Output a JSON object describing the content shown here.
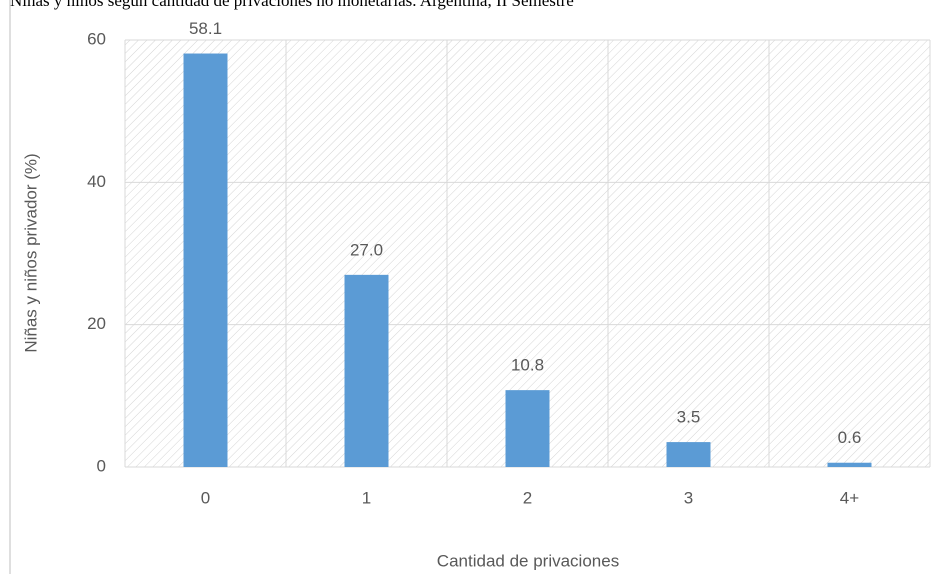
{
  "chart_data": {
    "type": "bar",
    "title": "Niñas y niños según cantidad de privaciones no monetarias. Argentina, II Semestre",
    "x_label": "Cantidad de privaciones",
    "y_label": "Niñas y niños privador (%)",
    "categories": [
      "0",
      "1",
      "2",
      "3",
      "4+"
    ],
    "values": [
      58.1,
      27.0,
      10.8,
      3.5,
      0.6
    ],
    "value_labels": [
      "58.1",
      "27.0",
      "10.8",
      "3.5",
      "0.6"
    ],
    "color": "#5b9bd5",
    "ylim": [
      0,
      60
    ],
    "yticks": [
      0,
      20,
      40,
      60
    ],
    "grid": true
  }
}
